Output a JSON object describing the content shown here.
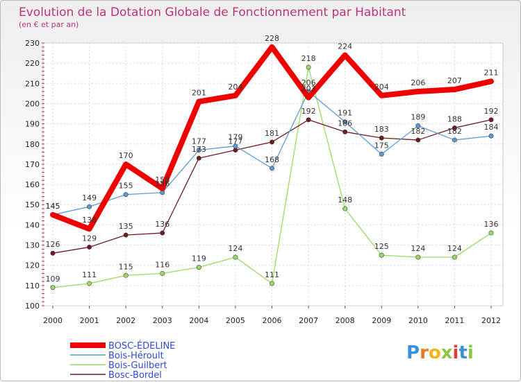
{
  "chart_data": {
    "type": "line",
    "title": "Evolution de la Dotation Globale de Fonctionnement par Habitant",
    "subtitle": "(en € et par an)",
    "x": [
      "2000",
      "2001",
      "2002",
      "2003",
      "2004",
      "2005",
      "2006",
      "2007",
      "2008",
      "2009",
      "2010",
      "2011",
      "2012"
    ],
    "ylim": [
      100,
      230
    ],
    "yticks": [
      "100",
      "110",
      "120",
      "130",
      "140",
      "150",
      "160",
      "170",
      "180",
      "190",
      "200",
      "210",
      "220",
      "230"
    ],
    "grid": true,
    "legend_position": "bottom-left",
    "series": [
      {
        "name": "Bois-Guilbert",
        "color": "#99d966",
        "values": [
          109,
          111,
          115,
          116,
          119,
          124,
          111,
          218,
          148,
          125,
          124,
          124,
          136
        ]
      },
      {
        "name": "Bosc-Bordel",
        "color": "#6e1a20",
        "values": [
          126,
          129,
          135,
          136,
          173,
          177,
          181,
          192,
          186,
          183,
          182,
          188,
          192
        ]
      },
      {
        "name": "Bois-Héroult",
        "color": "#5b9bd5",
        "values": [
          145,
          149,
          155,
          156,
          177,
          179,
          168,
          206,
          191,
          175,
          189,
          182,
          184
        ]
      },
      {
        "name": "BOSC-ÉDELINE",
        "color": "#ee0000",
        "values": [
          145,
          138,
          170,
          158,
          201,
          204,
          228,
          203,
          224,
          204,
          206,
          207,
          211
        ]
      }
    ],
    "legend_order": [
      "BOSC-ÉDELINE",
      "Bois-Héroult",
      "Bois-Guilbert",
      "Bosc-Bordel"
    ]
  },
  "logo": {
    "text": "Proxiti"
  }
}
